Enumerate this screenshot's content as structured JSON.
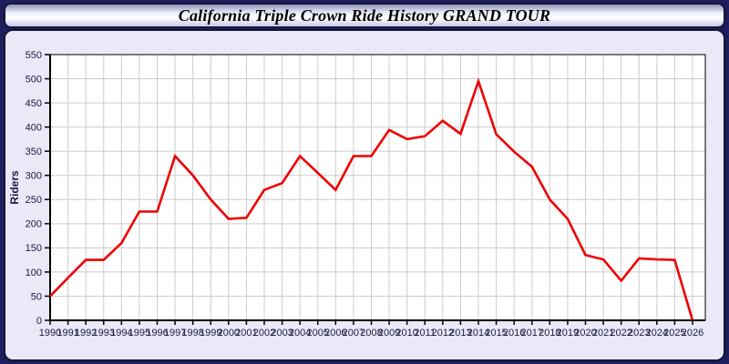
{
  "header": {
    "title": "California Triple Crown Ride History GRAND TOUR"
  },
  "colors": {
    "page_background": "#1e1e5c",
    "panel_background": "#e9e9f8",
    "plot_background": "#ffffff",
    "gridline": "#cccccc",
    "axis": "#000000",
    "tick_label": "#1b1b40",
    "series_line": "#ee0000"
  },
  "chart_data": {
    "type": "line",
    "title": "California Triple Crown Ride History GRAND TOUR",
    "xlabel": "",
    "ylabel": "Riders",
    "x": [
      1990,
      1991,
      1992,
      1993,
      1994,
      1995,
      1996,
      1997,
      1998,
      1999,
      2000,
      2001,
      2002,
      2003,
      2004,
      2005,
      2006,
      2007,
      2008,
      2009,
      2010,
      2011,
      2012,
      2013,
      2014,
      2015,
      2016,
      2017,
      2018,
      2019,
      2020,
      2021,
      2022,
      2023,
      2024,
      2025,
      2026
    ],
    "series": [
      {
        "name": "Riders",
        "values": [
          50,
          88,
          125,
          125,
          160,
          225,
          225,
          340,
          300,
          250,
          210,
          212,
          270,
          284,
          340,
          305,
          270,
          340,
          340,
          394,
          375,
          381,
          413,
          386,
          495,
          385,
          349,
          318,
          250,
          210,
          135,
          126,
          82,
          128,
          126,
          125,
          0
        ]
      }
    ],
    "ylim": [
      0,
      550
    ],
    "yticks": [
      0,
      50,
      100,
      150,
      200,
      250,
      300,
      350,
      400,
      450,
      500,
      550
    ],
    "grid": true,
    "legend_position": "none"
  }
}
